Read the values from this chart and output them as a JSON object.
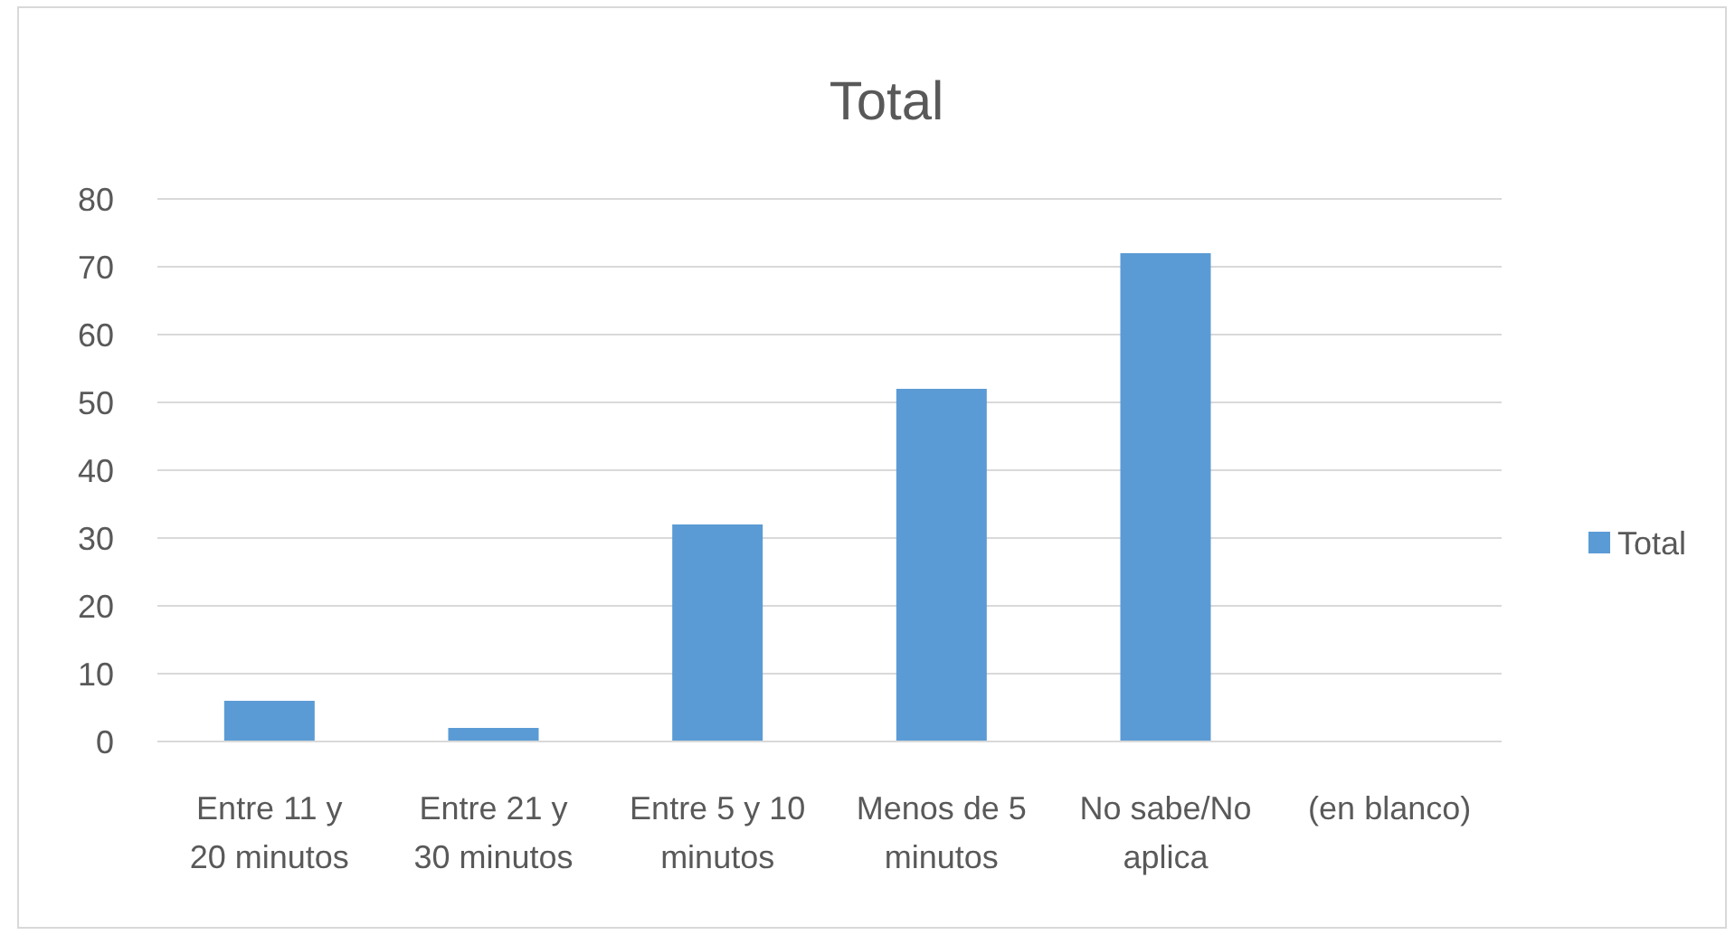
{
  "chart_data": {
    "type": "bar",
    "title": "Total",
    "categories": [
      "Entre 11 y 20 minutos",
      "Entre 21 y 30 minutos",
      "Entre 5 y 10 minutos",
      "Menos de 5 minutos",
      "No sabe/No aplica",
      "(en blanco)"
    ],
    "series": [
      {
        "name": "Total",
        "color": "#5b9bd5",
        "values": [
          6,
          2,
          32,
          52,
          72,
          null
        ]
      }
    ],
    "ylim": [
      0,
      80
    ],
    "yticks": [
      0,
      10,
      20,
      30,
      40,
      50,
      60,
      70,
      80
    ],
    "grid": "y",
    "legend": "right"
  }
}
